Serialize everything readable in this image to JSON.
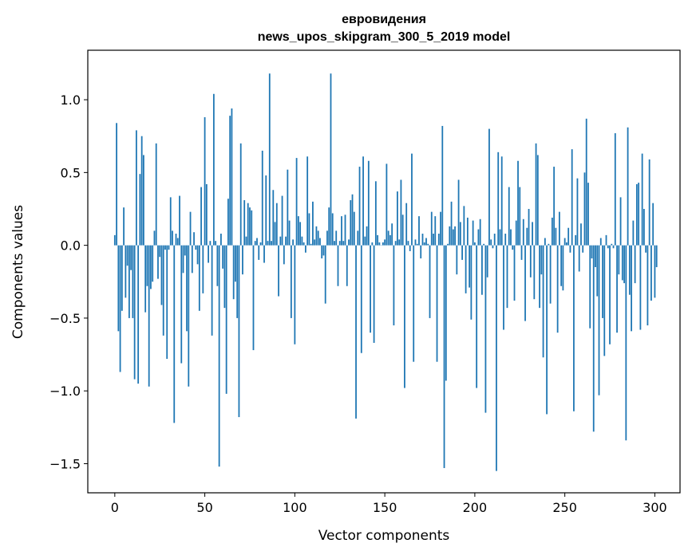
{
  "chart_data": {
    "type": "bar",
    "title": "евровидения",
    "subtitle": "news_upos_skipgram_300_5_2019 model",
    "xlabel": "Vector components",
    "ylabel": "Components values",
    "xlim": [
      -15,
      314
    ],
    "ylim": [
      -1.7,
      1.34
    ],
    "xticks": [
      0,
      50,
      100,
      150,
      200,
      250,
      300
    ],
    "yticks": [
      -1.5,
      -1.0,
      -0.5,
      0.0,
      0.5,
      1.0
    ],
    "ytick_labels": [
      "−1.5",
      "−1.0",
      "−0.5",
      "0.0",
      "0.5",
      "1.0"
    ],
    "xtick_labels": [
      "0",
      "50",
      "100",
      "150",
      "200",
      "250",
      "300"
    ],
    "grid": false,
    "bar_color": "#1f77b4",
    "values": [
      0.07,
      0.84,
      -0.59,
      -0.87,
      -0.45,
      0.26,
      -0.36,
      -0.14,
      -0.5,
      -0.17,
      -0.5,
      -0.92,
      0.79,
      -0.95,
      0.49,
      0.75,
      0.62,
      -0.46,
      -0.28,
      -0.97,
      -0.3,
      -0.25,
      0.1,
      0.7,
      -0.23,
      -0.08,
      -0.41,
      -0.62,
      -0.03,
      -0.78,
      -0.03,
      0.33,
      0.1,
      -1.22,
      0.08,
      0.05,
      0.34,
      -0.81,
      -0.19,
      -0.07,
      -0.59,
      -0.97,
      0.23,
      -0.19,
      0.09,
      -0.03,
      -0.13,
      -0.45,
      0.4,
      -0.33,
      0.88,
      0.42,
      -0.12,
      0.03,
      -0.62,
      1.04,
      0.03,
      -0.28,
      -1.52,
      0.08,
      -0.16,
      -0.43,
      -1.02,
      0.32,
      0.89,
      0.94,
      -0.37,
      -0.25,
      -0.5,
      -1.18,
      0.7,
      -0.2,
      0.31,
      0.06,
      0.29,
      0.26,
      0.24,
      -0.72,
      0.03,
      0.05,
      -0.1,
      0.02,
      0.65,
      -0.12,
      0.48,
      0.03,
      1.18,
      0.03,
      0.38,
      0.16,
      0.29,
      -0.35,
      0.06,
      0.34,
      -0.13,
      0.06,
      0.52,
      0.17,
      -0.5,
      0.04,
      -0.68,
      0.6,
      0.2,
      0.16,
      0.06,
      0.02,
      -0.05,
      0.61,
      0.22,
      0.01,
      0.3,
      0.04,
      0.13,
      0.1,
      0.05,
      -0.09,
      -0.07,
      -0.4,
      0.1,
      0.26,
      1.18,
      0.22,
      0.03,
      0.1,
      -0.28,
      0.03,
      0.2,
      0.03,
      0.21,
      -0.28,
      0.04,
      0.31,
      0.35,
      0.23,
      -1.19,
      0.1,
      0.54,
      -0.74,
      0.61,
      0.06,
      0.13,
      0.58,
      -0.6,
      0.02,
      -0.67,
      0.44,
      0.07,
      0.02,
      0.0,
      0.02,
      0.04,
      0.56,
      0.1,
      0.07,
      0.15,
      -0.55,
      0.03,
      0.37,
      0.04,
      0.45,
      0.21,
      -0.98,
      0.29,
      0.03,
      -0.04,
      0.63,
      -0.8,
      0.04,
      0.01,
      0.2,
      -0.09,
      0.08,
      0.02,
      0.05,
      0.01,
      -0.5,
      0.23,
      0.08,
      0.2,
      -0.8,
      0.08,
      0.23,
      0.82,
      -1.53,
      -0.93,
      0.01,
      0.13,
      0.3,
      0.11,
      0.13,
      -0.2,
      0.45,
      0.16,
      -0.1,
      0.27,
      -0.33,
      0.19,
      -0.29,
      -0.51,
      0.17,
      0.02,
      -0.98,
      0.11,
      0.18,
      -0.34,
      0.01,
      -1.15,
      -0.22,
      0.8,
      0.04,
      -0.02,
      0.08,
      -1.55,
      0.64,
      0.11,
      0.61,
      -0.58,
      0.08,
      -0.43,
      0.4,
      0.11,
      -0.03,
      -0.38,
      0.17,
      0.58,
      0.4,
      -0.1,
      0.18,
      -0.52,
      0.12,
      0.25,
      -0.22,
      0.16,
      -0.37,
      0.7,
      0.62,
      -0.43,
      -0.2,
      -0.77,
      0.05,
      -1.16,
      0.01,
      -0.4,
      0.19,
      0.54,
      0.12,
      -0.6,
      0.23,
      -0.28,
      -0.31,
      0.05,
      0.02,
      0.12,
      -0.05,
      0.66,
      -1.14,
      0.07,
      0.46,
      -0.18,
      0.15,
      -0.05,
      0.5,
      0.87,
      0.43,
      -0.57,
      -0.09,
      -1.28,
      -0.15,
      -0.35,
      -1.03,
      0.05,
      -0.5,
      -0.76,
      0.07,
      -0.02,
      -0.68,
      0.01,
      -0.02,
      0.77,
      -0.6,
      -0.2,
      0.33,
      -0.24,
      -0.26,
      -1.34,
      0.81,
      -0.34,
      -0.59,
      0.17,
      -0.26,
      0.42,
      0.43,
      -0.58,
      0.63,
      0.25,
      -0.05,
      -0.55,
      0.59,
      -0.38,
      0.29,
      -0.36,
      -0.15
    ]
  }
}
